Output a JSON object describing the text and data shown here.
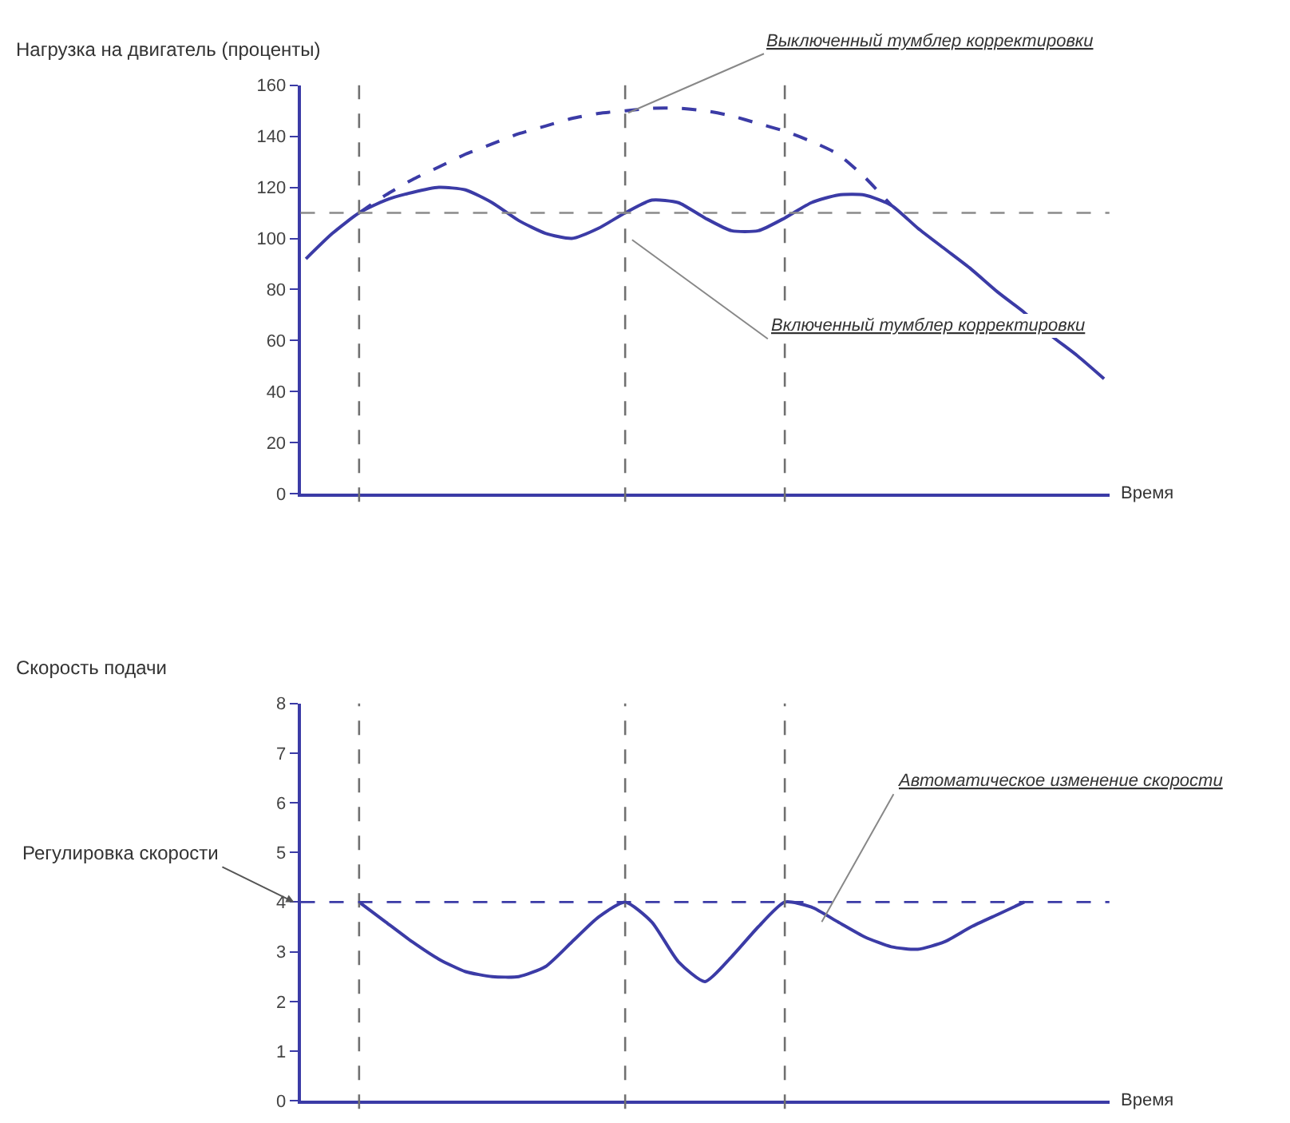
{
  "chart_data": [
    {
      "type": "line",
      "ylabel": "Нагрузка на двигатель (проценты)",
      "xlabel": "Время",
      "tick_labels": "y",
      "categories": [
        null,
        null,
        null,
        null,
        null,
        null,
        null,
        null,
        null,
        null,
        null,
        null,
        null,
        null,
        null,
        null,
        null,
        null,
        null,
        null,
        null,
        null,
        null,
        null,
        null,
        null,
        null,
        null,
        null,
        null,
        null
      ],
      "ylim": [
        0,
        160
      ],
      "yticks": [
        0,
        20,
        40,
        60,
        80,
        100,
        120,
        140,
        160
      ],
      "series": [
        {
          "color": "#3b3ba6",
          "line_style": "solid",
          "values": [
            92,
            102,
            110,
            115,
            118,
            120,
            119,
            114,
            107,
            102,
            100,
            104,
            110,
            115,
            114,
            108,
            103,
            103,
            108,
            114,
            117,
            117,
            113,
            104,
            96,
            88,
            79,
            71,
            62,
            54,
            45
          ]
        },
        {
          "color": "#3b3ba6",
          "line_style": "dashed",
          "values": [
            null,
            null,
            110,
            117,
            123,
            128,
            133,
            137,
            141,
            144,
            147,
            149,
            150,
            151,
            151,
            150,
            148,
            145,
            142,
            138,
            133,
            124,
            113,
            null,
            null,
            null,
            null,
            null,
            null,
            null,
            null
          ]
        }
      ],
      "ref_lines": [
        {
          "axis": "y",
          "value": 110,
          "color": "#8a8a8a",
          "line_style": "dashed"
        }
      ],
      "grid": "x",
      "annotations": [
        "Выключенный тумблер корректировки",
        "Включенный тумблер корректировки"
      ]
    },
    {
      "type": "line",
      "ylabel": "Скорость подачи",
      "xlabel": "Время",
      "tick_labels": "y",
      "categories": [
        null,
        null,
        null,
        null,
        null,
        null,
        null,
        null,
        null,
        null,
        null,
        null,
        null,
        null,
        null,
        null,
        null,
        null,
        null,
        null,
        null,
        null,
        null,
        null,
        null,
        null,
        null,
        null,
        null,
        null,
        null
      ],
      "ylim": [
        0,
        8
      ],
      "yticks": [
        0,
        1,
        2,
        3,
        4,
        5,
        6,
        7,
        8
      ],
      "series": [
        {
          "color": "#3b3ba6",
          "line_style": "solid",
          "values": [
            null,
            null,
            4,
            3.6,
            3.2,
            2.85,
            2.6,
            2.5,
            2.5,
            2.7,
            3.2,
            3.7,
            4,
            3.6,
            2.8,
            2.4,
            2.9,
            3.5,
            4,
            3.9,
            3.6,
            3.3,
            3.1,
            3.05,
            3.2,
            3.5,
            3.75,
            4,
            null,
            null,
            null
          ]
        }
      ],
      "ref_lines": [
        {
          "axis": "y",
          "value": 4,
          "color": "#3b3ba6",
          "line_style": "dashed"
        }
      ],
      "grid": "x",
      "annotations": [
        "Регулировка скорости",
        "Автоматическое изменение скорости"
      ]
    }
  ]
}
